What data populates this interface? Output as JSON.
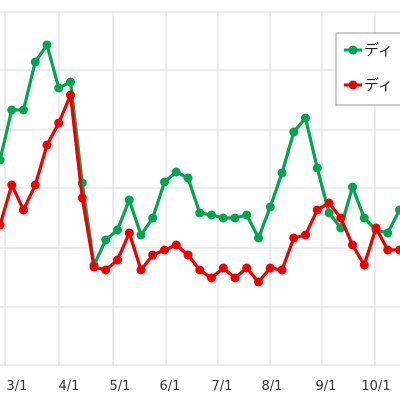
{
  "chart_data": {
    "type": "line",
    "title": "",
    "xlabel": "",
    "ylabel": "",
    "grid": true,
    "legend_position": "top-right",
    "x_tick_labels": [
      "3/1",
      "4/1",
      "5/1",
      "6/1",
      "7/1",
      "8/1",
      "9/1",
      "10/1"
    ],
    "series": [
      {
        "name": "ディ",
        "color": "#00a550",
        "values": [
          160,
          110,
          110,
          62,
          45,
          88,
          82,
          183,
          265,
          240,
          230,
          200,
          235,
          218,
          182,
          172,
          178,
          213,
          215,
          218,
          218,
          215,
          238,
          207,
          173,
          132,
          118,
          168,
          213,
          228,
          187,
          218,
          230,
          233,
          210
        ]
      },
      {
        "name": "ディ",
        "color": "#ee0000",
        "values": [
          225,
          185,
          210,
          185,
          145,
          123,
          95,
          198,
          267,
          270,
          260,
          233,
          270,
          255,
          250,
          245,
          255,
          270,
          278,
          268,
          278,
          268,
          282,
          268,
          270,
          238,
          235,
          210,
          203,
          218,
          245,
          265,
          228,
          250,
          250
        ]
      }
    ]
  }
}
